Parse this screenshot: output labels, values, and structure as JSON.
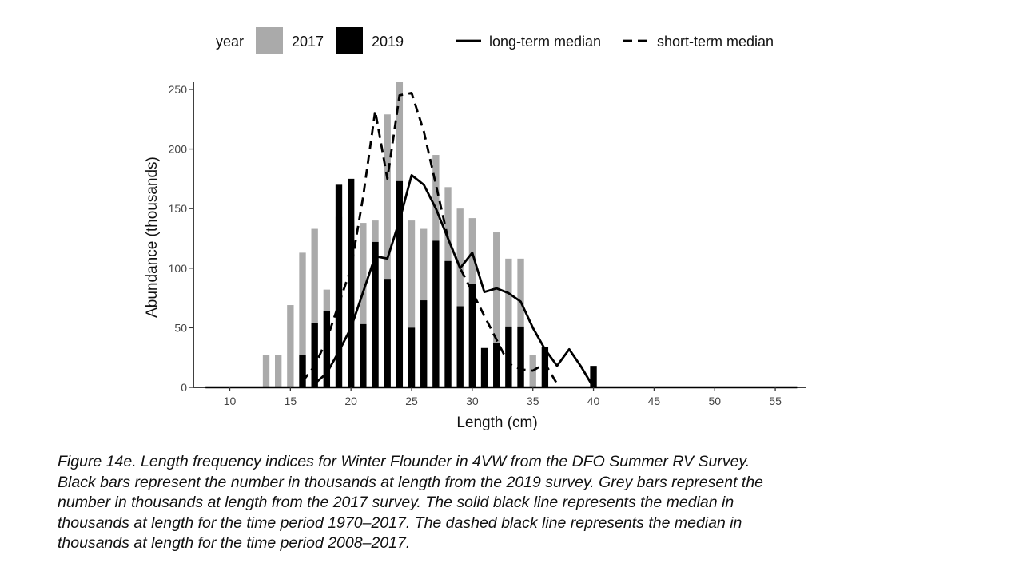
{
  "chart_data": {
    "type": "bar",
    "xlabel": "Length (cm)",
    "ylabel": "Abundance (thousands)",
    "xlim": [
      7,
      57.5
    ],
    "ylim": [
      0,
      256
    ],
    "x_ticks": [
      10,
      15,
      20,
      25,
      30,
      35,
      40,
      45,
      50,
      55
    ],
    "y_ticks": [
      0,
      50,
      100,
      150,
      200,
      250
    ],
    "grid": false,
    "legend": {
      "position": "top",
      "title": "year",
      "bar_entries": [
        {
          "label": "2017",
          "color": "#aaaaaa"
        },
        {
          "label": "2019",
          "color": "#000000"
        }
      ],
      "line_entries": [
        {
          "label": "long-term median",
          "style": "solid"
        },
        {
          "label": "short-term median",
          "style": "dashed"
        }
      ]
    },
    "series": [
      {
        "name": "2017",
        "kind": "bar",
        "color": "#aaaaaa",
        "x": [
          13,
          14,
          15,
          16,
          17,
          18,
          19,
          20,
          21,
          22,
          23,
          24,
          25,
          26,
          27,
          28,
          29,
          30,
          31,
          32,
          33,
          34,
          35
        ],
        "values": [
          27,
          27,
          69,
          113,
          133,
          82,
          143,
          140,
          138,
          140,
          229,
          260,
          140,
          133,
          195,
          168,
          150,
          142,
          27,
          130,
          108,
          108,
          27
        ]
      },
      {
        "name": "2019",
        "kind": "bar",
        "color": "#000000",
        "x": [
          16,
          17,
          18,
          19,
          20,
          21,
          22,
          23,
          24,
          25,
          26,
          27,
          28,
          29,
          30,
          31,
          32,
          33,
          34,
          36,
          40
        ],
        "values": [
          27,
          54,
          64,
          170,
          175,
          53,
          122,
          91,
          173,
          50,
          73,
          123,
          106,
          68,
          87,
          33,
          37,
          51,
          51,
          34,
          18
        ]
      },
      {
        "name": "long-term median",
        "kind": "line",
        "style": "solid",
        "x": [
          17,
          18,
          19,
          20,
          21,
          22,
          23,
          24,
          25,
          26,
          27,
          28,
          29,
          30,
          31,
          32,
          33,
          34,
          35,
          36,
          37,
          38,
          39,
          40
        ],
        "values": [
          3,
          12,
          30,
          50,
          80,
          110,
          108,
          140,
          178,
          170,
          150,
          125,
          100,
          113,
          80,
          83,
          79,
          72,
          50,
          32,
          18,
          32,
          17,
          0
        ]
      },
      {
        "name": "short-term median",
        "kind": "line",
        "style": "dashed",
        "x": [
          16,
          17,
          18,
          19,
          20,
          21,
          22,
          23,
          24,
          25,
          26,
          27,
          28,
          29,
          30,
          31,
          32,
          33,
          34,
          35,
          36,
          37
        ],
        "values": [
          5,
          18,
          40,
          70,
          100,
          160,
          232,
          175,
          245,
          247,
          215,
          170,
          125,
          100,
          80,
          60,
          40,
          20,
          15,
          14,
          20,
          3
        ]
      }
    ]
  },
  "caption": {
    "lines": [
      "Figure 14e. Length frequency indices for Winter Flounder in 4VW from the DFO Summer RV Survey.",
      "Black bars represent the number in thousands at length from the 2019 survey. Grey bars represent the",
      "number in thousands at length from the 2017 survey. The solid black line represents the median in",
      "thousands at length for the time period 1970–2017. The dashed black line represents the median in",
      "thousands at length for the time period 2008–2017."
    ]
  }
}
